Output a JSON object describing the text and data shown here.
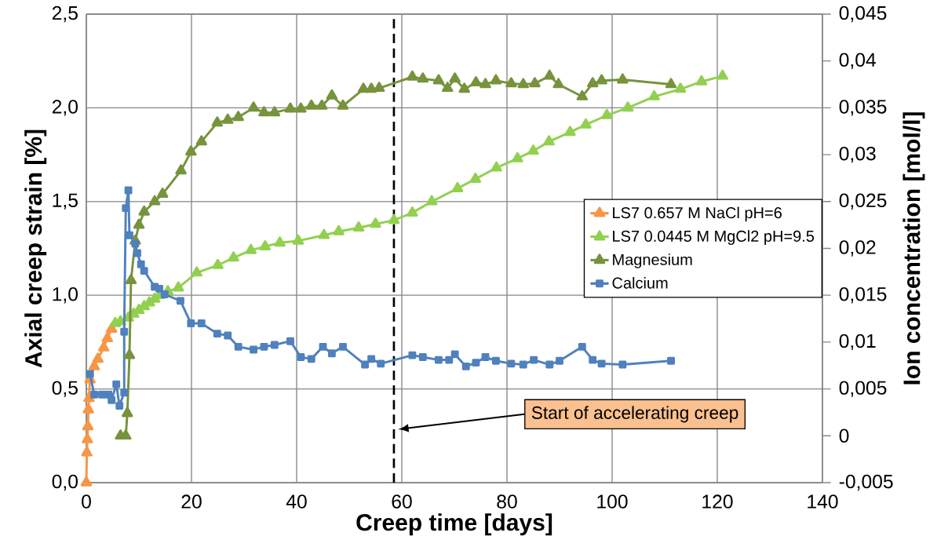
{
  "chart_data": {
    "type": "line",
    "xlabel": "Creep time [days]",
    "ylabel": "Axial creep strain [%]",
    "y2label": "Ion concentration [mol/l]",
    "xlim": [
      0,
      140
    ],
    "xticks": [
      0,
      20,
      40,
      60,
      80,
      100,
      120,
      140
    ],
    "ylim": [
      0,
      2.5
    ],
    "yticks": [
      {
        "value": 0,
        "label": "0,0"
      },
      {
        "value": 0.5,
        "label": "0,5"
      },
      {
        "value": 1,
        "label": "1,0"
      },
      {
        "value": 1.5,
        "label": "1,5"
      },
      {
        "value": 2,
        "label": "2,0"
      },
      {
        "value": 2.5,
        "label": "2,5"
      }
    ],
    "y2lim": [
      -0.005,
      0.045
    ],
    "y2ticks": [
      {
        "value": -0.005,
        "label": "-0,005"
      },
      0,
      {
        "value": 0.005,
        "label": "0,005"
      },
      {
        "value": 0.01,
        "label": "0,01"
      },
      {
        "value": 0.015,
        "label": "0,015"
      },
      {
        "value": 0.02,
        "label": "0,02"
      },
      {
        "value": 0.025,
        "label": "0,025"
      },
      {
        "value": 0.03,
        "label": "0,03"
      },
      {
        "value": 0.035,
        "label": "0,035"
      },
      {
        "value": 0.04,
        "label": "0,04"
      },
      {
        "value": 0.045,
        "label": "0,045"
      }
    ],
    "grid": true,
    "legend": "right",
    "series": [
      {
        "name": "LS7 0.657 M NaCl pH=6",
        "color": "#f79646",
        "marker": "triangle",
        "x": [
          0,
          0.1,
          0.2,
          0.3,
          0.4,
          0.5,
          0.7,
          1.5,
          2.2,
          3.3,
          4,
          4.8
        ],
        "values": [
          0,
          0.16,
          0.23,
          0.3,
          0.39,
          0.45,
          0.55,
          0.62,
          0.66,
          0.72,
          0.77,
          0.82
        ]
      },
      {
        "name": "LS7 0.0445 M MgCl2 pH=9.5",
        "color": "#92d050",
        "marker": "triangle",
        "x": [
          5.5,
          6.5,
          8,
          9,
          10,
          11,
          12,
          13,
          14,
          15.5,
          17.5,
          21,
          25,
          28,
          31.3,
          34,
          36.8,
          40.3,
          45.2,
          48,
          51.8,
          55,
          58.5,
          62,
          65.7,
          70.6,
          74,
          78,
          82,
          85,
          88,
          92,
          95,
          99,
          103,
          108,
          113,
          117,
          121
        ],
        "values": [
          0.85,
          0.86,
          0.88,
          0.9,
          0.92,
          0.94,
          0.96,
          0.98,
          1.0,
          1.02,
          1.04,
          1.12,
          1.16,
          1.2,
          1.24,
          1.26,
          1.28,
          1.29,
          1.32,
          1.34,
          1.36,
          1.38,
          1.4,
          1.44,
          1.5,
          1.57,
          1.62,
          1.68,
          1.73,
          1.77,
          1.82,
          1.87,
          1.91,
          1.96,
          2.0,
          2.06,
          2.1,
          2.14,
          2.17
        ]
      },
      {
        "name": "Magnesium",
        "color": "#77933c",
        "marker": "triangle",
        "axis": "y2",
        "x": [
          6.5,
          7.5,
          7.8,
          8.2,
          8.5,
          9.3,
          10,
          11,
          13,
          14.5,
          18,
          19.9,
          21.9,
          24.9,
          26.9,
          28.9,
          31.8,
          33.8,
          35.8,
          38.8,
          40.8,
          42.8,
          44.8,
          46.7,
          48.8,
          52.7,
          54.2,
          55.7,
          62,
          64,
          67,
          68.7,
          70.1,
          71.9,
          74.1,
          75.9,
          77.9,
          80.8,
          83.1,
          85.3,
          88.1,
          89.8,
          94.3,
          96.3,
          98,
          102,
          111.2
        ],
        "values": [
          0,
          0,
          0.0024,
          0.0086,
          0.0166,
          0.0208,
          0.0225,
          0.0239,
          0.025,
          0.0258,
          0.0283,
          0.0303,
          0.0314,
          0.0334,
          0.0337,
          0.034,
          0.035,
          0.0345,
          0.0345,
          0.0349,
          0.0349,
          0.0352,
          0.0352,
          0.0363,
          0.0352,
          0.037,
          0.037,
          0.0371,
          0.0383,
          0.0381,
          0.0379,
          0.0371,
          0.0381,
          0.037,
          0.0377,
          0.0375,
          0.0379,
          0.0376,
          0.0375,
          0.0376,
          0.0384,
          0.0375,
          0.0362,
          0.0376,
          0.0379,
          0.038,
          0.0375
        ]
      },
      {
        "name": "Calcium",
        "color": "#4f81bd",
        "marker": "square",
        "axis": "y2",
        "x": [
          0.7,
          1.5,
          3,
          4.2,
          4.8,
          5.7,
          6.3,
          7.2,
          7.2,
          7.5,
          8,
          8.2,
          9.3,
          9.7,
          10.4,
          11,
          13,
          13.9,
          14.9,
          17.9,
          19.9,
          21.9,
          24.9,
          26.9,
          28.9,
          31.8,
          33.8,
          35.8,
          38.8,
          40.8,
          42.8,
          45,
          46.7,
          48.8,
          53,
          54.2,
          56,
          62,
          64,
          67,
          69,
          70.1,
          72.2,
          74.1,
          75.9,
          77.9,
          80.8,
          83.1,
          85.1,
          88.1,
          90,
          94.3,
          96.3,
          98,
          102,
          111.2
        ],
        "values": [
          0.0066,
          0.0044,
          0.0044,
          0.0044,
          0.0038,
          0.0055,
          0.0032,
          0.0046,
          0.0111,
          0.0243,
          0.0262,
          0.0214,
          0.0205,
          0.0195,
          0.0183,
          0.0176,
          0.0159,
          0.0157,
          0.0151,
          0.0144,
          0.012,
          0.012,
          0.0109,
          0.0107,
          0.0095,
          0.0092,
          0.0095,
          0.0097,
          0.0101,
          0.0084,
          0.0082,
          0.0095,
          0.0088,
          0.0095,
          0.0076,
          0.0082,
          0.0077,
          0.0086,
          0.0084,
          0.0081,
          0.0081,
          0.0087,
          0.0074,
          0.0078,
          0.0084,
          0.008,
          0.0077,
          0.0076,
          0.0081,
          0.0076,
          0.008,
          0.0095,
          0.0081,
          0.0077,
          0.0076,
          0.008
        ]
      }
    ],
    "ref_lines": [
      {
        "axis": "x",
        "value": 58.5,
        "color": "#000000",
        "line_style": "dashed"
      }
    ],
    "annotations": [
      "Start of accelerating creep"
    ]
  }
}
